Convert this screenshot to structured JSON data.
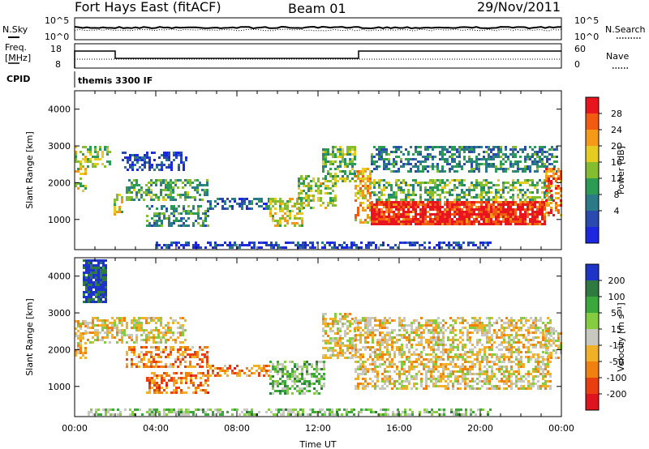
{
  "header": {
    "station": "Fort Hays East (fitACF)",
    "beam": "Beam 01",
    "date": "29/Nov/2011"
  },
  "strip_panels": {
    "nsky": {
      "left_label": "N.Sky",
      "right_label": "N.Search",
      "left_ticks": [
        "10^5",
        "10^0"
      ],
      "right_ticks": [
        "10^5",
        "10^0"
      ]
    },
    "freq": {
      "left_label_1": "Freq.",
      "left_label_2": "[MHz]",
      "left_ticks": [
        "18",
        "8"
      ],
      "right_label": "Nave",
      "right_ticks": [
        "60",
        "0"
      ]
    },
    "cpid": {
      "label": "CPID",
      "program": "themis 3300 IF"
    }
  },
  "chart_data": [
    {
      "type": "heatmap",
      "name": "power",
      "ylabel": "Slant Range [km]",
      "ylim": [
        180,
        4500
      ],
      "yticks": [
        1000,
        2000,
        3000,
        4000
      ],
      "xlim": [
        0,
        24
      ],
      "colorbar": {
        "label": "Power [dB]",
        "ticks": [
          "28",
          "24",
          "20",
          "16",
          "12",
          "8",
          "4"
        ],
        "colors": [
          "#e8141e",
          "#f25a10",
          "#f49a18",
          "#e6cc20",
          "#84bd30",
          "#2c9c55",
          "#2a7a88",
          "#2a4ab0",
          "#1c28e0"
        ]
      },
      "regions": [
        {
          "t0": 0.0,
          "t1": 0.6,
          "r0": 1800,
          "r1": 3000,
          "level": 0.55
        },
        {
          "t0": 0.6,
          "t1": 1.8,
          "r0": 2400,
          "r1": 3000,
          "level": 0.5
        },
        {
          "t0": 1.9,
          "t1": 2.3,
          "r0": 1100,
          "r1": 1700,
          "level": 0.6
        },
        {
          "t0": 2.3,
          "t1": 5.5,
          "r0": 2350,
          "r1": 2850,
          "level": 0.15
        },
        {
          "t0": 2.5,
          "t1": 6.6,
          "r0": 1500,
          "r1": 2100,
          "level": 0.4
        },
        {
          "t0": 3.5,
          "t1": 6.6,
          "r0": 800,
          "r1": 1400,
          "level": 0.35
        },
        {
          "t0": 6.5,
          "t1": 9.6,
          "r0": 1300,
          "r1": 1600,
          "level": 0.2
        },
        {
          "t0": 9.6,
          "t1": 11.2,
          "r0": 800,
          "r1": 1600,
          "level": 0.6
        },
        {
          "t0": 11.0,
          "t1": 12.9,
          "r0": 1300,
          "r1": 2200,
          "level": 0.5
        },
        {
          "t0": 12.2,
          "t1": 13.8,
          "r0": 2000,
          "r1": 3000,
          "level": 0.45
        },
        {
          "t0": 13.8,
          "t1": 14.6,
          "r0": 900,
          "r1": 2400,
          "level": 0.7
        },
        {
          "t0": 14.6,
          "t1": 23.2,
          "r0": 850,
          "r1": 1500,
          "level": 0.92
        },
        {
          "t0": 14.6,
          "t1": 23.6,
          "r0": 1500,
          "r1": 2100,
          "level": 0.45
        },
        {
          "t0": 14.6,
          "t1": 23.8,
          "r0": 2300,
          "r1": 3000,
          "level": 0.3
        },
        {
          "t0": 23.2,
          "t1": 24.0,
          "r0": 1100,
          "r1": 2400,
          "level": 0.8
        },
        {
          "t0": 4.0,
          "t1": 20.5,
          "r0": 200,
          "r1": 400,
          "level": 0.1
        }
      ]
    },
    {
      "type": "heatmap",
      "name": "velocity",
      "ylabel": "Slant Range [km]",
      "xlabel": "Time UT",
      "ylim": [
        180,
        4500
      ],
      "yticks": [
        1000,
        2000,
        3000,
        4000
      ],
      "xlim": [
        0,
        24
      ],
      "xticks": [
        "00:00",
        "04:00",
        "08:00",
        "12:00",
        "16:00",
        "20:00",
        "00:00"
      ],
      "colorbar": {
        "label": "Velocity [m s⁻¹]",
        "ticks": [
          "200",
          "100",
          "50",
          "15",
          "-15",
          "-50",
          "-100",
          "-200"
        ],
        "colors": [
          "#1e34c8",
          "#2e7a40",
          "#3aa83a",
          "#86cc40",
          "#c8c8c0",
          "#f0b028",
          "#f08010",
          "#e83e10",
          "#e0141e"
        ]
      },
      "regions": [
        {
          "t0": 0.0,
          "t1": 0.6,
          "r0": 1800,
          "r1": 2800,
          "level": 0.4
        },
        {
          "t0": 0.4,
          "t1": 1.6,
          "r0": 3300,
          "r1": 4450,
          "level": 0.95
        },
        {
          "t0": 0.6,
          "t1": 5.5,
          "r0": 2200,
          "r1": 2900,
          "level": 0.45
        },
        {
          "t0": 2.5,
          "t1": 6.6,
          "r0": 1500,
          "r1": 2100,
          "level": 0.3
        },
        {
          "t0": 3.5,
          "t1": 6.6,
          "r0": 800,
          "r1": 1400,
          "level": 0.25
        },
        {
          "t0": 6.5,
          "t1": 9.6,
          "r0": 1300,
          "r1": 1600,
          "level": 0.28
        },
        {
          "t0": 9.6,
          "t1": 12.3,
          "r0": 800,
          "r1": 1700,
          "level": 0.65
        },
        {
          "t0": 12.2,
          "t1": 13.8,
          "r0": 1800,
          "r1": 3000,
          "level": 0.45
        },
        {
          "t0": 13.8,
          "t1": 23.5,
          "r0": 900,
          "r1": 2900,
          "level": 0.45
        },
        {
          "t0": 23.2,
          "t1": 24.0,
          "r0": 1800,
          "r1": 2600,
          "level": 0.45
        },
        {
          "t0": 0.5,
          "t1": 20.5,
          "r0": 200,
          "r1": 400,
          "level": 0.62
        }
      ]
    }
  ]
}
